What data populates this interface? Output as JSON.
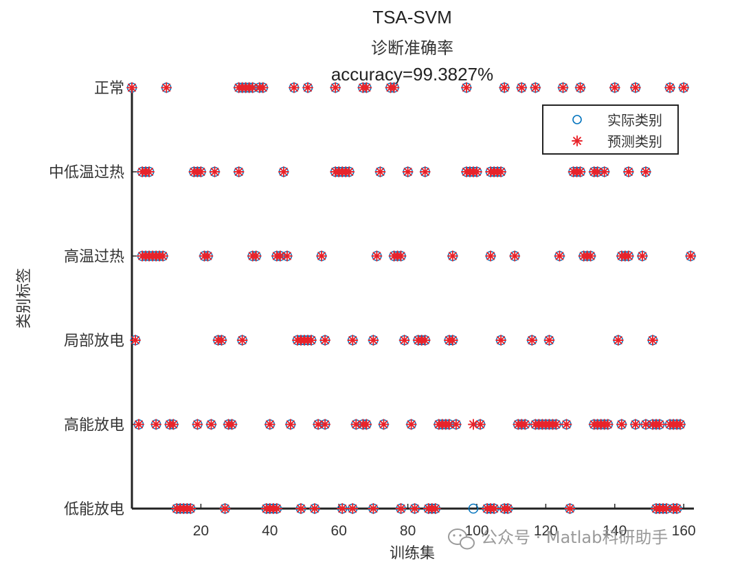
{
  "chart_data": {
    "type": "scatter",
    "title_lines": [
      "TSA-SVM",
      "诊断准确率",
      "accuracy=99.3827%"
    ],
    "xlabel": "训练集",
    "ylabel": "类别标签",
    "xlim": [
      0,
      162
    ],
    "x_ticks": [
      20,
      40,
      60,
      80,
      100,
      120,
      140,
      160
    ],
    "categories": [
      "低能放电",
      "高能放电",
      "局部放电",
      "高温过热",
      "中低温过热",
      "正常"
    ],
    "legend_position": "top-right",
    "legend": [
      {
        "label": "实际类别",
        "marker": "circle",
        "color": "#0072BD"
      },
      {
        "label": "预测类别",
        "marker": "asterisk",
        "color": "#E8232A"
      }
    ],
    "series": [
      {
        "name": "实际类别",
        "points": {
          "正常": [
            0,
            10,
            31,
            32,
            33,
            34,
            35,
            37,
            38,
            47,
            51,
            59,
            67,
            68,
            75,
            76,
            97,
            108,
            113,
            117,
            125,
            130,
            140,
            146,
            156,
            160
          ],
          "中低温过热": [
            3,
            4,
            5,
            18,
            19,
            20,
            24,
            31,
            44,
            59,
            60,
            61,
            62,
            63,
            72,
            80,
            85,
            97,
            98,
            99,
            100,
            104,
            105,
            106,
            107,
            128,
            129,
            130,
            134,
            135,
            137,
            144,
            149
          ],
          "高温过热": [
            3,
            4,
            5,
            6,
            7,
            8,
            9,
            21,
            22,
            35,
            36,
            42,
            43,
            45,
            55,
            71,
            76,
            77,
            78,
            93,
            104,
            111,
            124,
            131,
            132,
            133,
            142,
            143,
            144,
            148,
            162
          ],
          "局部放电": [
            1,
            25,
            26,
            32,
            48,
            49,
            50,
            51,
            52,
            56,
            64,
            70,
            79,
            83,
            84,
            85,
            92,
            93,
            107,
            116,
            121,
            141,
            151
          ],
          "高能放电": [
            2,
            7,
            11,
            12,
            19,
            23,
            28,
            29,
            40,
            46,
            54,
            56,
            65,
            67,
            68,
            73,
            81,
            89,
            90,
            91,
            92,
            94,
            101,
            112,
            113,
            114,
            117,
            118,
            119,
            120,
            121,
            122,
            123,
            126,
            134,
            135,
            136,
            137,
            138,
            142,
            146,
            149,
            151,
            152,
            153,
            156,
            157,
            158,
            159
          ],
          "低能放电": [
            13,
            14,
            15,
            16,
            17,
            27,
            39,
            40,
            41,
            42,
            49,
            53,
            61,
            64,
            70,
            78,
            82,
            86,
            87,
            88,
            99,
            103,
            104,
            105,
            108,
            109,
            127,
            152,
            153,
            154,
            155,
            157,
            158
          ]
        }
      },
      {
        "name": "预测类别",
        "points": {
          "正常": [
            0,
            10,
            31,
            32,
            33,
            34,
            35,
            37,
            38,
            47,
            51,
            59,
            67,
            68,
            75,
            76,
            97,
            108,
            113,
            117,
            125,
            130,
            140,
            146,
            156,
            160
          ],
          "中低温过热": [
            3,
            4,
            5,
            18,
            19,
            20,
            24,
            31,
            44,
            59,
            60,
            61,
            62,
            63,
            72,
            80,
            85,
            97,
            98,
            99,
            100,
            104,
            105,
            106,
            107,
            128,
            129,
            130,
            134,
            135,
            137,
            144,
            149
          ],
          "高温过热": [
            3,
            4,
            5,
            6,
            7,
            8,
            9,
            21,
            22,
            35,
            36,
            42,
            43,
            45,
            55,
            71,
            76,
            77,
            78,
            93,
            104,
            111,
            124,
            131,
            132,
            133,
            142,
            143,
            144,
            148,
            162
          ],
          "局部放电": [
            1,
            25,
            26,
            32,
            48,
            49,
            50,
            51,
            52,
            56,
            64,
            70,
            79,
            83,
            84,
            85,
            92,
            93,
            107,
            116,
            121,
            141,
            151
          ],
          "高能放电": [
            2,
            7,
            11,
            12,
            19,
            23,
            28,
            29,
            40,
            46,
            54,
            56,
            65,
            67,
            68,
            73,
            81,
            89,
            90,
            91,
            92,
            94,
            99,
            101,
            112,
            113,
            114,
            117,
            118,
            119,
            120,
            121,
            122,
            123,
            126,
            134,
            135,
            136,
            137,
            138,
            142,
            146,
            149,
            151,
            152,
            153,
            156,
            157,
            158,
            159
          ],
          "低能放电": [
            13,
            14,
            15,
            16,
            17,
            27,
            39,
            40,
            41,
            42,
            49,
            53,
            61,
            64,
            70,
            78,
            82,
            86,
            87,
            88,
            103,
            104,
            105,
            108,
            109,
            127,
            152,
            153,
            154,
            155,
            157,
            158
          ]
        }
      }
    ]
  },
  "watermark": {
    "text": "公众号 · Matlab科研助手",
    "icon": "wechat-icon"
  }
}
